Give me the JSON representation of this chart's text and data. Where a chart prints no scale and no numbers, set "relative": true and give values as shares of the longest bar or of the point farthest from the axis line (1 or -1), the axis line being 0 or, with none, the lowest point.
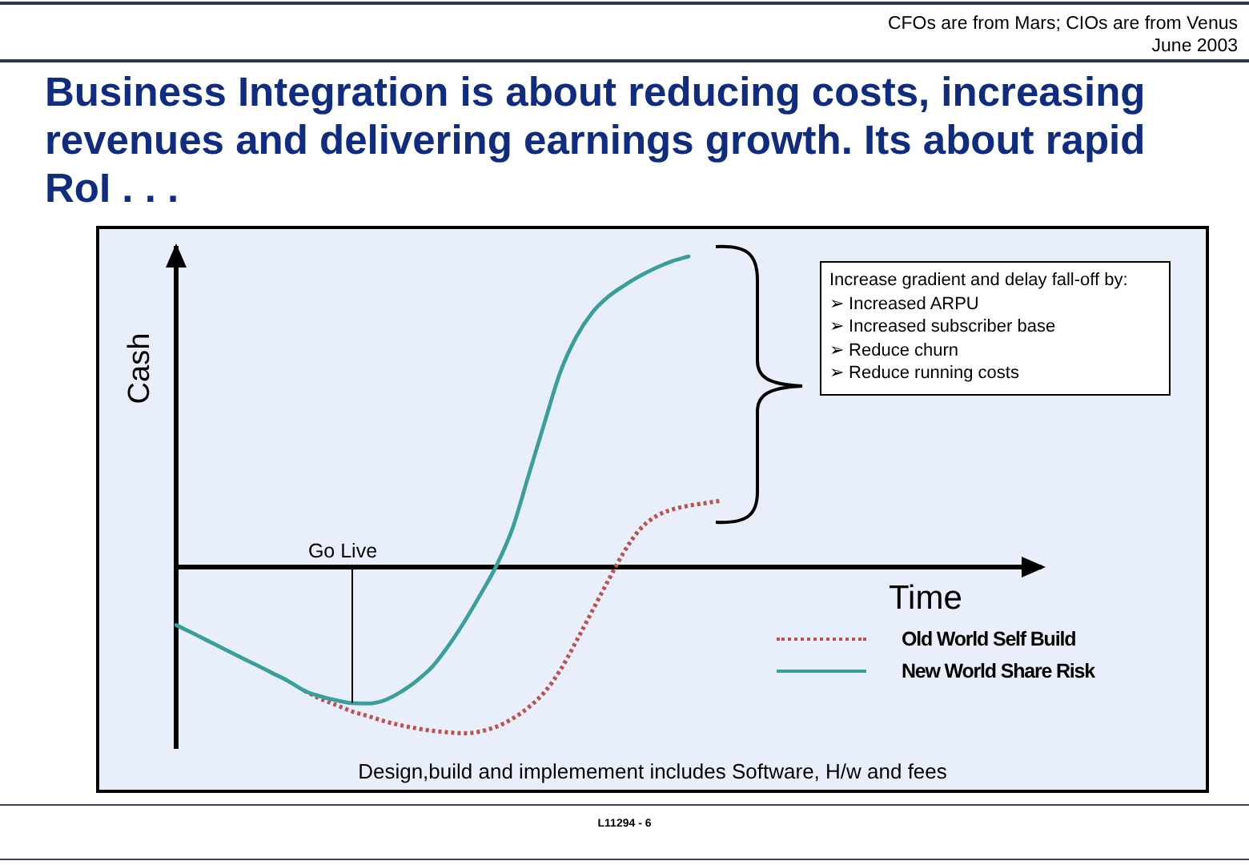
{
  "chart_data": {
    "type": "line",
    "relative": true,
    "title": "Business Integration is about reducing costs, increasing revenues and delivering earnings growth. Its about rapid RoI . . .",
    "xlabel": "Time",
    "ylabel": "Cash",
    "categories": [
      null,
      null,
      null,
      null,
      null,
      null,
      null,
      null,
      null,
      null,
      null,
      null,
      null,
      null,
      null,
      null,
      null,
      null,
      null,
      null,
      null,
      null,
      null,
      null,
      null,
      null,
      null,
      null,
      null,
      null,
      null,
      null,
      null,
      null,
      null,
      null,
      null,
      null,
      null,
      null,
      null,
      null,
      null,
      null,
      null,
      null,
      null,
      null,
      null,
      null,
      null,
      null,
      null,
      null,
      null
    ],
    "series": [
      {
        "name": "Old World Self Build",
        "color": "#c0504d",
        "line_style": "dotted",
        "values": [
          null,
          null,
          null,
          null,
          null,
          null,
          null,
          null,
          -0.397,
          -0.423,
          -0.443,
          -0.464,
          -0.479,
          -0.495,
          -0.508,
          -0.518,
          -0.526,
          -0.531,
          -0.534,
          -0.528,
          -0.513,
          -0.487,
          -0.451,
          -0.402,
          -0.33,
          -0.237,
          -0.139,
          -0.041,
          0.052,
          0.124,
          0.165,
          0.186,
          0.198,
          0.206,
          0.214,
          null,
          null,
          null,
          null,
          null,
          null,
          null,
          null,
          null,
          null,
          null,
          null,
          null,
          null,
          null,
          null,
          null,
          null,
          null,
          null
        ]
      },
      {
        "name": "New World Share Risk",
        "color": "#3a9e9c",
        "line_style": "solid",
        "values": [
          -0.186,
          -0.211,
          -0.237,
          -0.263,
          -0.289,
          -0.314,
          -0.34,
          -0.366,
          -0.397,
          -0.415,
          -0.428,
          -0.437,
          -0.438,
          -0.428,
          -0.402,
          -0.366,
          -0.32,
          -0.253,
          -0.175,
          -0.088,
          0.005,
          0.124,
          0.294,
          0.464,
          0.629,
          0.742,
          0.82,
          0.871,
          0.907,
          0.938,
          0.964,
          0.985,
          1.0,
          null,
          null,
          null,
          null,
          null,
          null,
          null,
          null,
          null,
          null,
          null,
          null,
          null,
          null,
          null,
          null,
          null,
          null,
          null,
          null,
          null,
          null
        ]
      }
    ],
    "annotations": [
      "CFOs are from Mars; CIOs are from Venus",
      "June 2003",
      "Go Live",
      "Increase gradient and delay fall-off by:\n➢ Increased ARPU\n➢ Increased subscriber base\n➢ Reduce churn\n➢ Reduce running costs",
      "Design,build and implemement includes Software, H/w and fees",
      "L11294 - 6"
    ],
    "legend": "bottom right",
    "grid": false,
    "marker": "none"
  }
}
